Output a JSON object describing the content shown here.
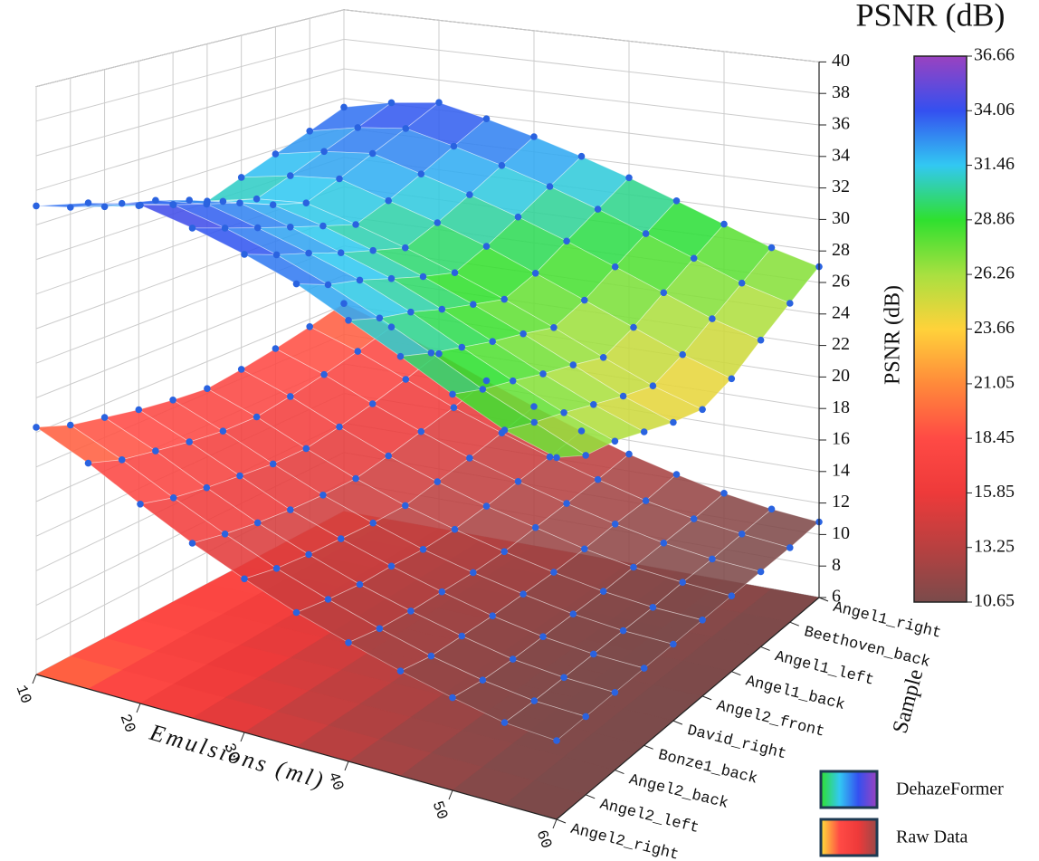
{
  "chart_data": {
    "type": "surface3d",
    "title": "PSNR (dB)",
    "xlabel": "Emulsions (ml)",
    "ylabel": "Sample",
    "zlabel": "PSNR (dB)",
    "x": [
      10,
      15,
      20,
      25,
      30,
      35,
      40,
      45,
      50,
      55,
      60
    ],
    "xlim": [
      10,
      60
    ],
    "xticks": [
      10,
      20,
      30,
      40,
      50,
      60
    ],
    "categories": [
      "Angel2_right",
      "Angel2_left",
      "Angel2_back",
      "Bonze1_back",
      "David_right",
      "Angel2_front",
      "Angel1_back",
      "Angel1_left",
      "Beethoven_back",
      "Angel1_right"
    ],
    "zlim": [
      6,
      40
    ],
    "zticks": [
      6,
      8,
      10,
      12,
      14,
      16,
      18,
      20,
      22,
      24,
      26,
      28,
      30,
      32,
      34,
      36,
      38,
      40
    ],
    "colorbar_lim": [
      10.65,
      36.66
    ],
    "colorbar_ticks": [
      10.65,
      13.25,
      15.85,
      18.45,
      21.05,
      23.66,
      26.26,
      28.86,
      31.46,
      34.06,
      36.66
    ],
    "colormap": [
      "#7a4b4b",
      "#b84040",
      "#ee3a3a",
      "#ff4a45",
      "#ff8a3a",
      "#ffd23a",
      "#a8e040",
      "#2fe02f",
      "#32c8f2",
      "#3450f0",
      "#9a42c0"
    ],
    "point_color": "#2a63e0",
    "grid": true,
    "series": [
      {
        "name": "DehazeFormer",
        "colors": [
          "#2fe02f",
          "#32c8f2",
          "#3450f0",
          "#9a42c0"
        ],
        "values": [
          [
            33.1,
            34.2,
            35.0,
            34.6,
            34.0,
            33.2,
            32.0,
            30.8,
            29.5,
            28.3,
            27.6
          ],
          [
            32.4,
            33.5,
            34.3,
            33.8,
            33.1,
            32.2,
            31.1,
            29.9,
            28.6,
            27.5,
            26.4
          ],
          [
            31.8,
            33.0,
            33.6,
            33.0,
            32.3,
            31.5,
            30.4,
            29.1,
            27.9,
            26.8,
            25.9
          ],
          [
            31.2,
            32.3,
            32.9,
            32.2,
            31.4,
            30.6,
            29.5,
            28.3,
            27.1,
            26.0,
            25.1
          ],
          [
            30.6,
            31.5,
            32.0,
            31.4,
            30.6,
            29.7,
            28.7,
            27.6,
            26.4,
            25.2,
            24.3
          ],
          [
            30.1,
            30.9,
            31.3,
            30.6,
            29.8,
            28.9,
            27.9,
            26.8,
            25.6,
            24.5,
            23.7
          ],
          [
            30.9,
            31.6,
            32.0,
            31.2,
            30.4,
            29.5,
            28.4,
            27.3,
            26.2,
            25.1,
            24.2
          ],
          [
            31.7,
            32.4,
            32.8,
            32.0,
            31.2,
            30.3,
            29.3,
            28.2,
            27.1,
            26.0,
            25.2
          ],
          [
            32.5,
            33.2,
            33.6,
            32.9,
            32.1,
            31.2,
            30.2,
            29.1,
            28.0,
            26.9,
            26.1
          ],
          [
            33.4,
            34.1,
            34.5,
            33.8,
            33.0,
            32.1,
            31.1,
            30.0,
            28.9,
            27.8,
            27.0
          ]
        ]
      },
      {
        "name": "Raw Data",
        "colors": [
          "#ffe03a",
          "#ff4a45",
          "#ee3a3a",
          "#9a4848"
        ],
        "values": [
          [
            20.3,
            19.1,
            17.6,
            16.2,
            15.0,
            13.9,
            13.0,
            12.2,
            11.5,
            10.9,
            10.7
          ],
          [
            19.6,
            18.4,
            17.0,
            15.7,
            14.5,
            13.5,
            12.6,
            11.8,
            11.2,
            10.8,
            10.7
          ],
          [
            19.2,
            18.0,
            16.6,
            15.3,
            14.2,
            13.2,
            12.4,
            11.7,
            11.1,
            10.8,
            10.7
          ],
          [
            18.8,
            17.6,
            16.3,
            15.0,
            14.0,
            13.1,
            12.3,
            11.6,
            11.1,
            10.8,
            10.7
          ],
          [
            18.5,
            17.3,
            16.0,
            14.8,
            13.8,
            12.9,
            12.2,
            11.6,
            11.1,
            10.8,
            10.7
          ],
          [
            18.3,
            17.2,
            15.9,
            14.7,
            13.7,
            12.9,
            12.2,
            11.6,
            11.1,
            10.8,
            10.7
          ],
          [
            18.6,
            17.5,
            16.2,
            15.0,
            14.0,
            13.1,
            12.4,
            11.7,
            11.2,
            10.9,
            10.7
          ],
          [
            19.0,
            17.9,
            16.6,
            15.4,
            14.3,
            13.4,
            12.6,
            11.9,
            11.3,
            10.9,
            10.7
          ],
          [
            19.5,
            18.4,
            17.1,
            15.8,
            14.7,
            13.7,
            12.8,
            12.0,
            11.4,
            11.0,
            10.7
          ],
          [
            20.1,
            19.0,
            17.7,
            16.4,
            15.2,
            14.1,
            13.1,
            12.3,
            11.6,
            11.1,
            10.8
          ]
        ]
      }
    ]
  }
}
